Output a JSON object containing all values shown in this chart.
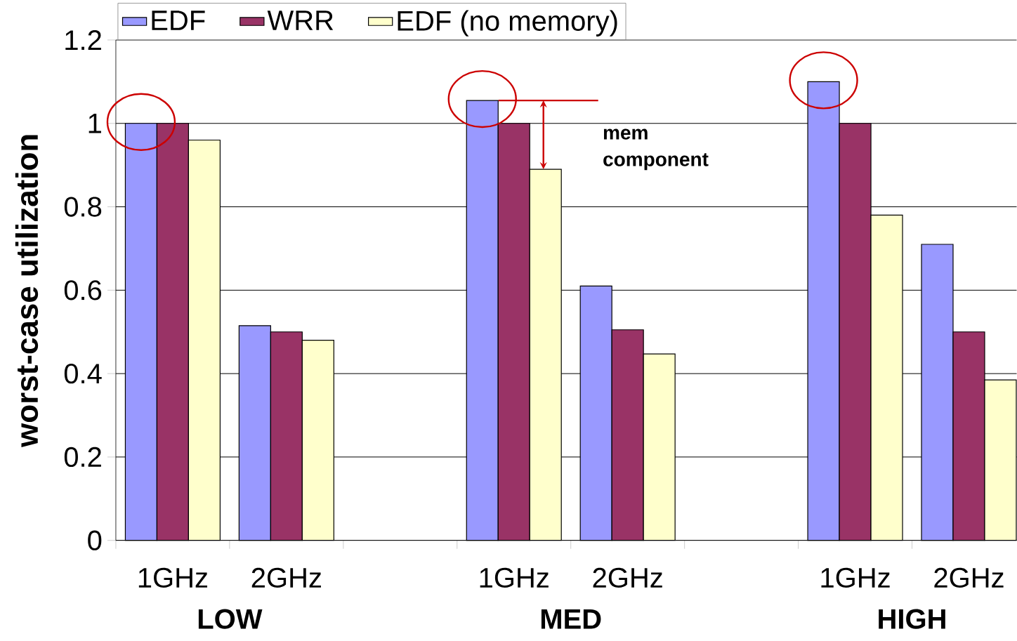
{
  "chart_data": {
    "type": "bar",
    "ylabel": "worst-case utilization",
    "categories": [
      "1GHz",
      "2GHz",
      null,
      "1GHz",
      "2GHz",
      null,
      "1GHz",
      "2GHz"
    ],
    "series": [
      {
        "name": "EDF",
        "color": "#9999ff",
        "values": [
          1.0,
          0.515,
          null,
          1.055,
          0.61,
          null,
          1.1,
          0.71
        ]
      },
      {
        "name": "WRR",
        "color": "#993366",
        "values": [
          1.0,
          0.5,
          null,
          1.0,
          0.505,
          null,
          1.0,
          0.5
        ]
      },
      {
        "name": "EDF (no memory)",
        "color": "#ffffcc",
        "values": [
          0.96,
          0.48,
          null,
          0.89,
          0.447,
          null,
          0.78,
          0.385
        ]
      }
    ],
    "ylim": [
      0,
      1.2
    ],
    "yticks": [
      0,
      0.2,
      0.4,
      0.6,
      0.8,
      1,
      1.2
    ],
    "grid": "y",
    "legend": "top left",
    "annotations": [
      "LOW",
      "MED",
      "HIGH",
      "mem component"
    ]
  }
}
